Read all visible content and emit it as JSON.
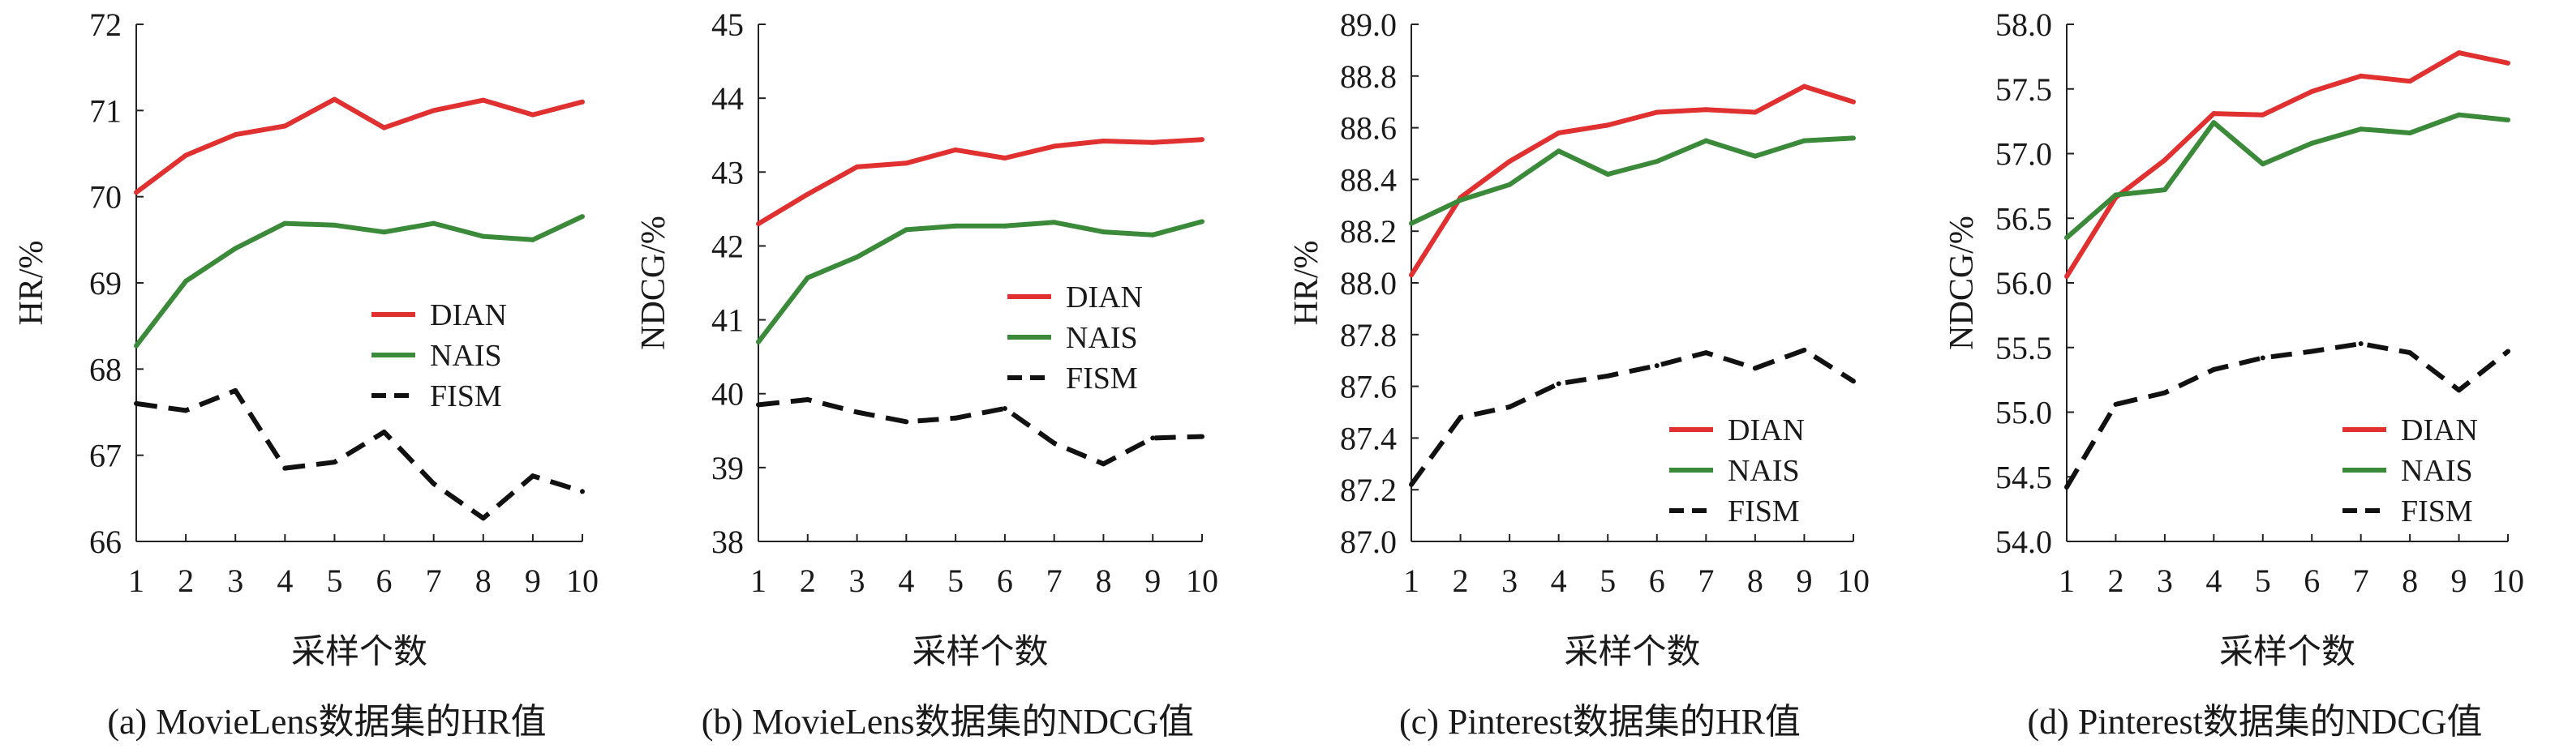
{
  "colors": {
    "DIAN": "#e03030",
    "NAIS": "#3a8a3a",
    "FISM": "#111111",
    "axis": "#222222"
  },
  "chart_data": [
    {
      "type": "line",
      "caption": "(a) MovieLens数据集的HR值",
      "xlabel": "采样个数",
      "ylabel": "HR/%",
      "x": [
        1,
        2,
        3,
        4,
        5,
        6,
        7,
        8,
        9,
        10
      ],
      "ylim": [
        66,
        72
      ],
      "yticks": [
        66,
        67,
        68,
        69,
        70,
        71,
        72
      ],
      "ytick_labels": [
        "66",
        "67",
        "68",
        "69",
        "70",
        "71",
        "72"
      ],
      "legend_position": "middle-right",
      "series": [
        {
          "name": "DIAN",
          "style": "solid",
          "values": [
            70.05,
            70.48,
            70.72,
            70.82,
            71.13,
            70.8,
            71.0,
            71.12,
            70.95,
            71.1
          ]
        },
        {
          "name": "NAIS",
          "style": "solid",
          "values": [
            68.27,
            69.02,
            69.4,
            69.69,
            69.67,
            69.59,
            69.69,
            69.54,
            69.5,
            69.77
          ]
        },
        {
          "name": "FISM",
          "style": "dashed",
          "values": [
            67.6,
            67.52,
            67.75,
            66.85,
            66.92,
            67.27,
            66.67,
            66.27,
            66.76,
            66.58
          ]
        }
      ]
    },
    {
      "type": "line",
      "caption": "(b) MovieLens数据集的NDCG值",
      "xlabel": "采样个数",
      "ylabel": "NDCG/%",
      "x": [
        1,
        2,
        3,
        4,
        5,
        6,
        7,
        8,
        9,
        10
      ],
      "ylim": [
        38,
        45
      ],
      "yticks": [
        38,
        39,
        40,
        41,
        42,
        43,
        44,
        45
      ],
      "ytick_labels": [
        "38",
        "39",
        "40",
        "41",
        "42",
        "43",
        "44",
        "45"
      ],
      "legend_position": "middle-right",
      "series": [
        {
          "name": "DIAN",
          "style": "solid",
          "values": [
            42.3,
            42.7,
            43.07,
            43.12,
            43.3,
            43.19,
            43.35,
            43.42,
            43.4,
            43.44
          ]
        },
        {
          "name": "NAIS",
          "style": "solid",
          "values": [
            40.7,
            41.57,
            41.85,
            42.22,
            42.27,
            42.27,
            42.32,
            42.19,
            42.15,
            42.33
          ]
        },
        {
          "name": "FISM",
          "style": "dashed",
          "values": [
            39.85,
            39.92,
            39.75,
            39.62,
            39.67,
            39.8,
            39.33,
            39.05,
            39.4,
            39.42
          ]
        }
      ]
    },
    {
      "type": "line",
      "caption": "(c) Pinterest数据集的HR值",
      "xlabel": "采样个数",
      "ylabel": "HR/%",
      "x": [
        1,
        2,
        3,
        4,
        5,
        6,
        7,
        8,
        9,
        10
      ],
      "ylim": [
        87.0,
        89.0
      ],
      "yticks": [
        87.0,
        87.2,
        87.4,
        87.6,
        87.8,
        88.0,
        88.2,
        88.4,
        88.6,
        88.8,
        89.0
      ],
      "ytick_labels": [
        "87.0",
        "87.2",
        "87.4",
        "87.6",
        "87.8",
        "88.0",
        "88.2",
        "88.4",
        "88.6",
        "88.8",
        "89.0"
      ],
      "legend_position": "bottom-right",
      "series": [
        {
          "name": "DIAN",
          "style": "solid",
          "values": [
            88.03,
            88.33,
            88.47,
            88.58,
            88.61,
            88.66,
            88.67,
            88.66,
            88.76,
            88.7
          ]
        },
        {
          "name": "NAIS",
          "style": "solid",
          "values": [
            88.23,
            88.32,
            88.38,
            88.51,
            88.42,
            88.47,
            88.55,
            88.49,
            88.55,
            88.56
          ]
        },
        {
          "name": "FISM",
          "style": "dashed",
          "values": [
            87.22,
            87.48,
            87.52,
            87.61,
            87.64,
            87.68,
            87.73,
            87.67,
            87.74,
            87.62
          ]
        }
      ]
    },
    {
      "type": "line",
      "caption": "(d) Pinterest数据集的NDCG值",
      "xlabel": "采样个数",
      "ylabel": "NDCG/%",
      "x": [
        1,
        2,
        3,
        4,
        5,
        6,
        7,
        8,
        9,
        10
      ],
      "ylim": [
        54.0,
        58.0
      ],
      "yticks": [
        54.0,
        54.5,
        55.0,
        55.5,
        56.0,
        56.5,
        57.0,
        57.5,
        58.0
      ],
      "ytick_labels": [
        "54.0",
        "54.5",
        "55.0",
        "55.5",
        "56.0",
        "56.5",
        "57.0",
        "57.5",
        "58.0"
      ],
      "legend_position": "bottom-right",
      "series": [
        {
          "name": "DIAN",
          "style": "solid",
          "values": [
            56.05,
            56.66,
            56.95,
            57.31,
            57.3,
            57.48,
            57.6,
            57.56,
            57.78,
            57.7
          ]
        },
        {
          "name": "NAIS",
          "style": "solid",
          "values": [
            56.35,
            56.68,
            56.72,
            57.24,
            56.92,
            57.08,
            57.19,
            57.16,
            57.3,
            57.26
          ]
        },
        {
          "name": "FISM",
          "style": "dashed",
          "values": [
            54.42,
            55.06,
            55.15,
            55.33,
            55.42,
            55.47,
            55.53,
            55.46,
            55.17,
            55.47
          ]
        }
      ]
    }
  ]
}
